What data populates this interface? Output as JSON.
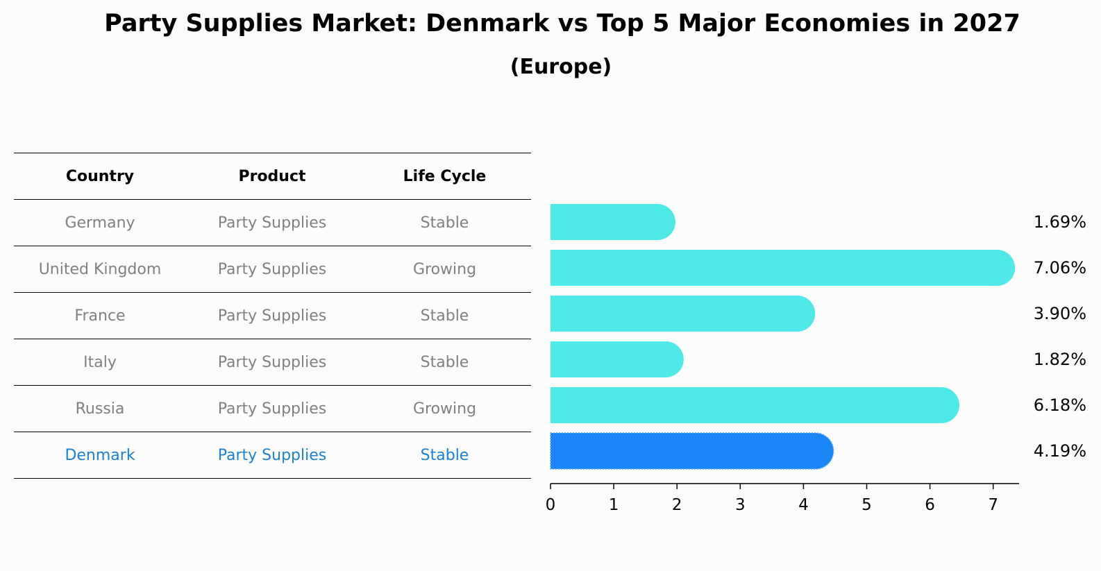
{
  "title": "Party Supplies Market: Denmark vs Top 5 Major Economies in 2027",
  "subtitle": "(Europe)",
  "table": {
    "headers": [
      "Country",
      "Product",
      "Life Cycle"
    ],
    "rows": [
      [
        "Germany",
        "Party Supplies",
        "Stable"
      ],
      [
        "United Kingdom",
        "Party Supplies",
        "Growing"
      ],
      [
        "France",
        "Party Supplies",
        "Stable"
      ],
      [
        "Italy",
        "Party Supplies",
        "Stable"
      ],
      [
        "Russia",
        "Party Supplies",
        "Growing"
      ],
      [
        "Denmark",
        "Party Supplies",
        "Stable"
      ]
    ],
    "highlight_row": 5
  },
  "colors": {
    "bar": "#4deae9",
    "highlight_bar": "#1a85f5",
    "highlight_text": "#1a81d6",
    "muted_text": "#808080"
  },
  "chart_data": {
    "type": "bar",
    "orientation": "horizontal",
    "categories": [
      "Germany",
      "United Kingdom",
      "France",
      "Italy",
      "Russia",
      "Denmark"
    ],
    "values": [
      1.69,
      7.06,
      3.9,
      1.82,
      6.18,
      4.19
    ],
    "value_labels": [
      "1.69%",
      "7.06%",
      "3.90%",
      "1.82%",
      "6.18%",
      "4.19%"
    ],
    "highlight_index": 5,
    "xlim": [
      0,
      7.4
    ],
    "xticks": [
      "0",
      "1",
      "2",
      "3",
      "4",
      "5",
      "6",
      "7"
    ],
    "grid": false
  }
}
